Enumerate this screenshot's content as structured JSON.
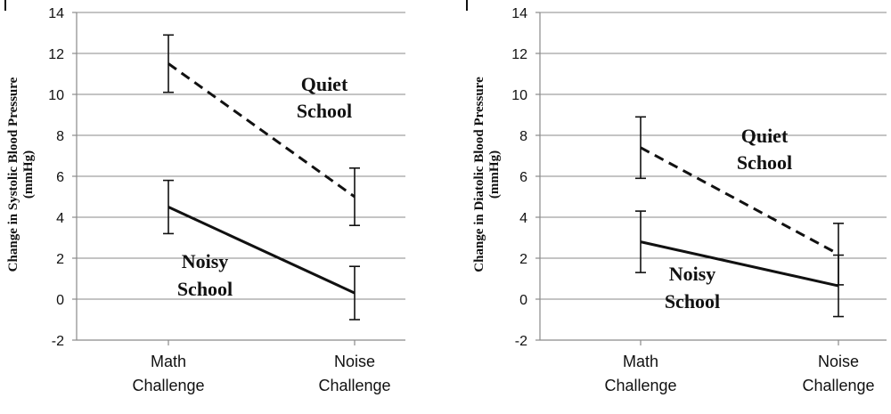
{
  "chart_data": [
    {
      "type": "line",
      "categories": [
        "Math\nChallenge",
        "Noise\nChallenge"
      ],
      "ylabel": "Change in Systolic Blood Pressure\n(mmHg)",
      "ylim": [
        -2,
        14
      ],
      "yticks": [
        -2,
        0,
        2,
        4,
        6,
        8,
        10,
        12,
        14
      ],
      "grid": true,
      "series": [
        {
          "name": "Quiet School",
          "label": "Quiet\nSchool",
          "style": "dashed",
          "values": [
            11.5,
            5.0
          ],
          "err_low": [
            10.1,
            3.6
          ],
          "err_high": [
            12.9,
            6.4
          ]
        },
        {
          "name": "Noisy School",
          "label": "Noisy\nSchool",
          "style": "solid",
          "values": [
            4.5,
            0.3
          ],
          "err_low": [
            3.2,
            -1.0
          ],
          "err_high": [
            5.8,
            1.6
          ]
        }
      ]
    },
    {
      "type": "line",
      "categories": [
        "Math\nChallenge",
        "Noise\nChallenge"
      ],
      "ylabel": "Change in Diatolic Blood Pressure\n(mmHg)",
      "ylim": [
        -2,
        14
      ],
      "yticks": [
        -2,
        0,
        2,
        4,
        6,
        8,
        10,
        12,
        14
      ],
      "grid": true,
      "series": [
        {
          "name": "Quiet School",
          "label": "Quiet\nSchool",
          "style": "dashed",
          "values": [
            7.4,
            2.2
          ],
          "err_low": [
            5.9,
            0.7
          ],
          "err_high": [
            8.9,
            3.7
          ]
        },
        {
          "name": "Noisy School",
          "label": "Noisy\nSchool",
          "style": "solid",
          "values": [
            2.8,
            0.65
          ],
          "err_low": [
            1.3,
            -0.85
          ],
          "err_high": [
            4.3,
            2.15
          ]
        }
      ]
    }
  ]
}
